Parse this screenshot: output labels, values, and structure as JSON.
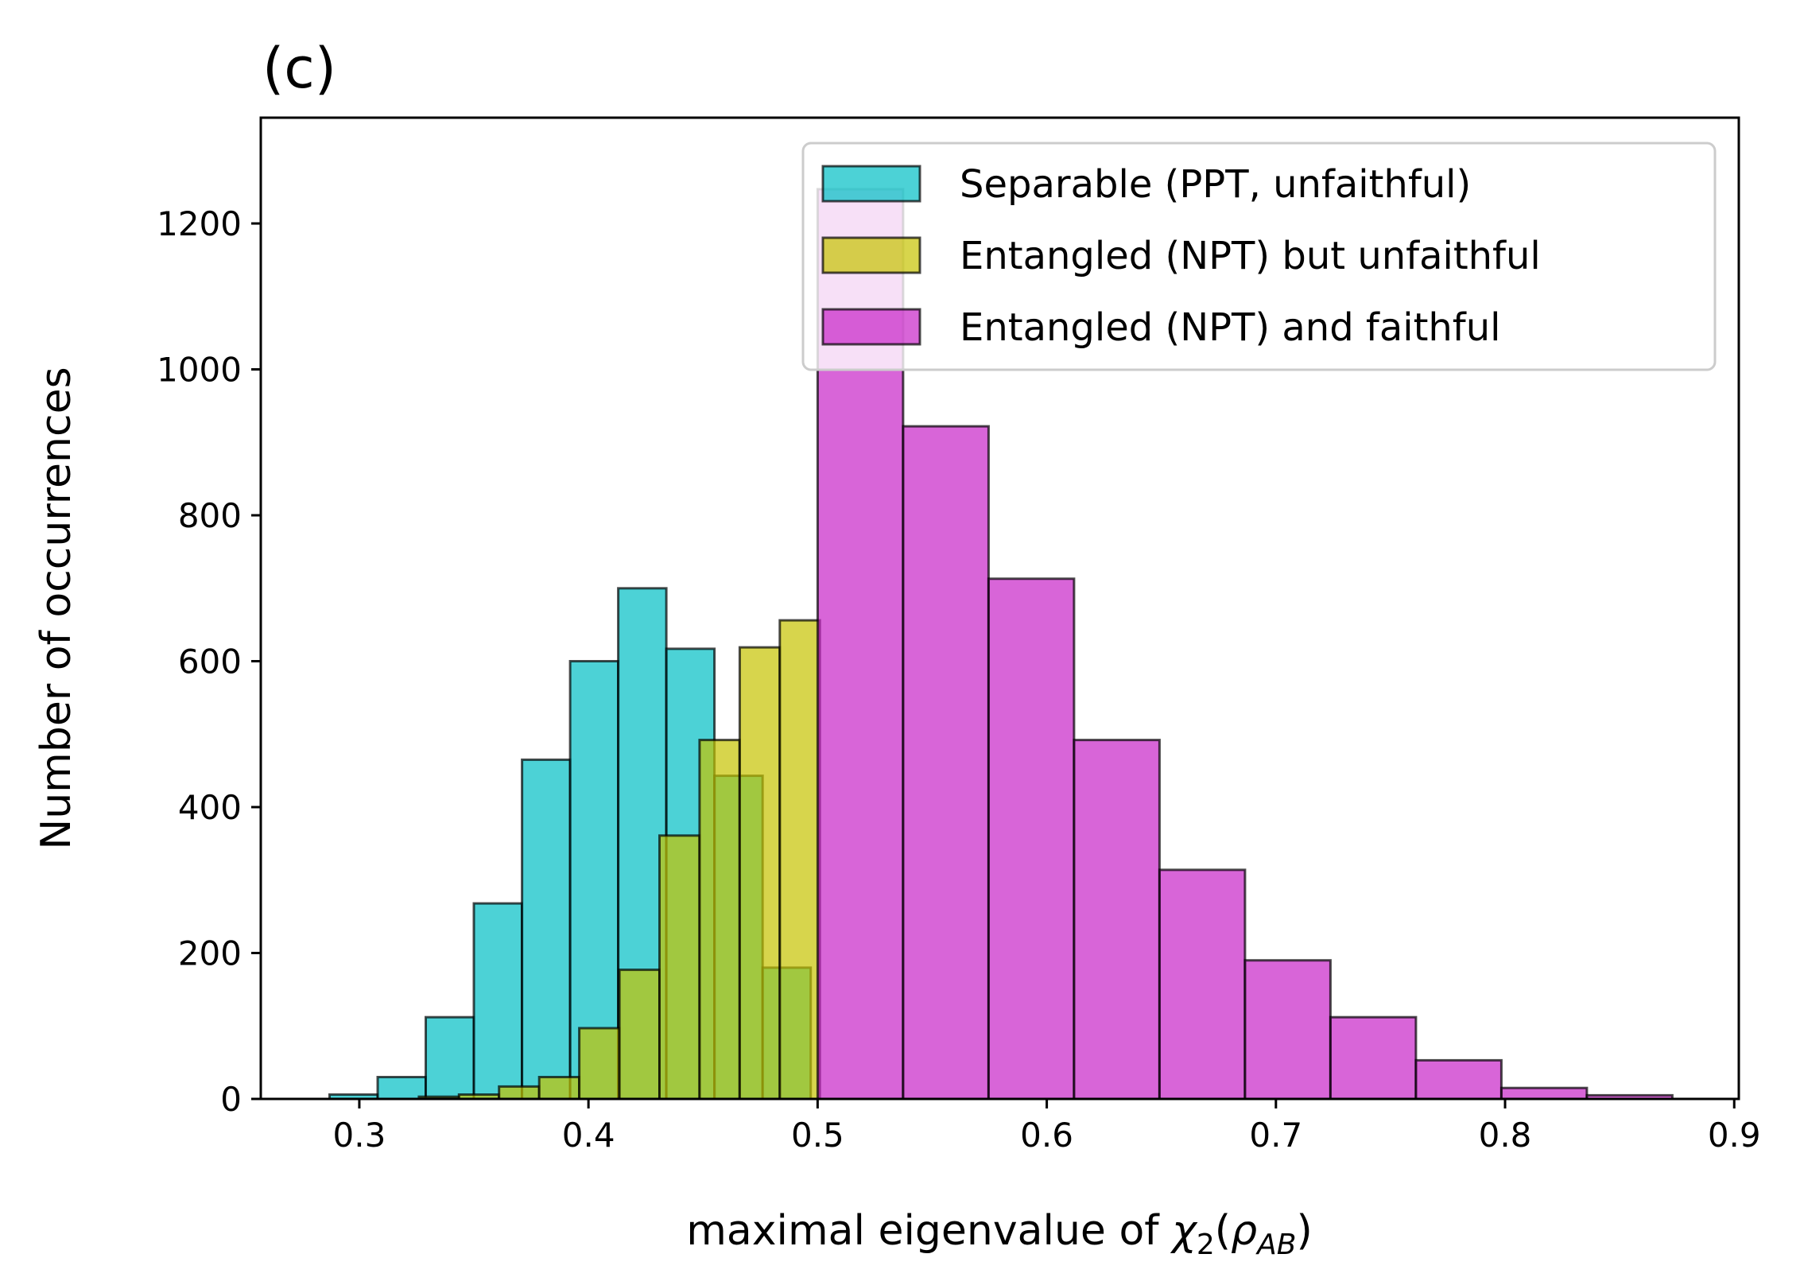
{
  "chart_data": {
    "type": "bar",
    "panel_label": "(c)",
    "xlabel_prefix": "maximal eigenvalue of ",
    "xlabel_symbol": "χ",
    "xlabel_sub": "2",
    "xlabel_rho": "ρ",
    "xlabel_rho_sub": "AB",
    "ylabel": "Number of occurrences",
    "xlim": [
      0.257,
      0.902
    ],
    "ylim": [
      0,
      1345
    ],
    "xticks": [
      0.3,
      0.4,
      0.5,
      0.6,
      0.7,
      0.8,
      0.9
    ],
    "xtick_labels": [
      "0.3",
      "0.4",
      "0.5",
      "0.6",
      "0.7",
      "0.8",
      "0.9"
    ],
    "yticks": [
      0,
      200,
      400,
      600,
      800,
      1000,
      1200
    ],
    "ytick_labels": [
      "0",
      "200",
      "400",
      "600",
      "800",
      "1000",
      "1200"
    ],
    "grid": false,
    "legend_position": "top-right",
    "series": [
      {
        "name": "Separable (PPT, unfaithful)",
        "color": "#00bfc4",
        "bins": [
          {
            "left": 0.287,
            "right": 0.308,
            "count": 6
          },
          {
            "left": 0.308,
            "right": 0.329,
            "count": 30
          },
          {
            "left": 0.329,
            "right": 0.35,
            "count": 112
          },
          {
            "left": 0.35,
            "right": 0.371,
            "count": 268
          },
          {
            "left": 0.371,
            "right": 0.392,
            "count": 465
          },
          {
            "left": 0.392,
            "right": 0.413,
            "count": 600
          },
          {
            "left": 0.413,
            "right": 0.434,
            "count": 700
          },
          {
            "left": 0.434,
            "right": 0.455,
            "count": 617
          },
          {
            "left": 0.455,
            "right": 0.476,
            "count": 443
          },
          {
            "left": 0.476,
            "right": 0.497,
            "count": 180
          }
        ]
      },
      {
        "name": "Entangled (NPT) but unfaithful",
        "color": "#c6c300",
        "bins": [
          {
            "left": 0.326,
            "right": 0.3435,
            "count": 3
          },
          {
            "left": 0.3435,
            "right": 0.361,
            "count": 6
          },
          {
            "left": 0.361,
            "right": 0.3785,
            "count": 17
          },
          {
            "left": 0.3785,
            "right": 0.396,
            "count": 30
          },
          {
            "left": 0.396,
            "right": 0.4135,
            "count": 97
          },
          {
            "left": 0.4135,
            "right": 0.431,
            "count": 177
          },
          {
            "left": 0.431,
            "right": 0.4485,
            "count": 361
          },
          {
            "left": 0.4485,
            "right": 0.466,
            "count": 492
          },
          {
            "left": 0.466,
            "right": 0.4835,
            "count": 619
          },
          {
            "left": 0.4835,
            "right": 0.501,
            "count": 656
          }
        ]
      },
      {
        "name": "Entangled (NPT) and faithful",
        "color": "#c724c7",
        "bins": [
          {
            "left": 0.5,
            "right": 0.5373,
            "count": 1247
          },
          {
            "left": 0.5373,
            "right": 0.5746,
            "count": 922
          },
          {
            "left": 0.5746,
            "right": 0.6119,
            "count": 713
          },
          {
            "left": 0.6119,
            "right": 0.6492,
            "count": 492
          },
          {
            "left": 0.6492,
            "right": 0.6865,
            "count": 314
          },
          {
            "left": 0.6865,
            "right": 0.7238,
            "count": 190
          },
          {
            "left": 0.7238,
            "right": 0.7611,
            "count": 112
          },
          {
            "left": 0.7611,
            "right": 0.7984,
            "count": 53
          },
          {
            "left": 0.7984,
            "right": 0.8357,
            "count": 15
          },
          {
            "left": 0.8357,
            "right": 0.873,
            "count": 5
          }
        ]
      }
    ]
  }
}
